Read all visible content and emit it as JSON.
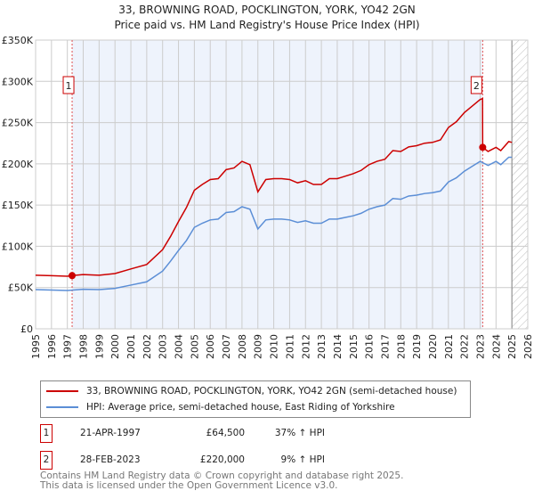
{
  "chart_data": {
    "type": "line",
    "title": "33, BROWNING ROAD, POCKLINGTON, YORK, YO42 2GN",
    "subtitle": "Price paid vs. HM Land Registry's House Price Index (HPI)",
    "xlim": [
      1995,
      2026
    ],
    "ylim": [
      0,
      350000
    ],
    "y_ticks": [
      0,
      50000,
      100000,
      150000,
      200000,
      250000,
      300000,
      350000
    ],
    "y_tick_labels": [
      "£0",
      "£50K",
      "£100K",
      "£150K",
      "£200K",
      "£250K",
      "£300K",
      "£350K"
    ],
    "x_ticks": [
      "1995",
      "1996",
      "1997",
      "1998",
      "1999",
      "2000",
      "2001",
      "2002",
      "2003",
      "2004",
      "2005",
      "2006",
      "2007",
      "2008",
      "2009",
      "2010",
      "2011",
      "2012",
      "2013",
      "2014",
      "2015",
      "2016",
      "2017",
      "2018",
      "2019",
      "2020",
      "2021",
      "2022",
      "2023",
      "2024",
      "2025",
      "2026"
    ],
    "grid": true,
    "shaded_range": [
      1997.3,
      2023.16
    ],
    "hatched_range": [
      2025,
      2026
    ],
    "series": [
      {
        "name": "33, BROWNING ROAD, POCKLINGTON, YORK, YO42 2GN (semi-detached house)",
        "color": "#cc0000",
        "x": [
          1995,
          1996,
          1997,
          1997.3,
          1998,
          1999,
          2000,
          2001,
          2002,
          2003,
          2003.5,
          2004,
          2004.5,
          2005,
          2005.5,
          2006,
          2006.5,
          2007,
          2007.5,
          2008,
          2008.5,
          2009,
          2009.5,
          2010,
          2010.5,
          2011,
          2011.5,
          2012,
          2012.5,
          2013,
          2013.5,
          2014,
          2015,
          2015.5,
          2016,
          2016.5,
          2017,
          2017.5,
          2018,
          2018.5,
          2019,
          2019.5,
          2020,
          2020.5,
          2021,
          2021.5,
          2022,
          2022.5,
          2023,
          2023.15,
          2023.16,
          2023.5,
          2024,
          2024.3,
          2024.8,
          2025
        ],
        "y": [
          65000,
          64400,
          63700,
          64500,
          65800,
          65000,
          67000,
          72600,
          78000,
          96000,
          112000,
          130000,
          147000,
          168000,
          175000,
          181000,
          182000,
          193000,
          195000,
          203000,
          199000,
          166000,
          181000,
          182000,
          182000,
          181000,
          177000,
          179500,
          175000,
          175000,
          182000,
          182000,
          188000,
          192000,
          199000,
          203000,
          205500,
          216000,
          215000,
          220500,
          222000,
          225000,
          226000,
          229000,
          244000,
          251000,
          262000,
          270000,
          278000,
          279000,
          220000,
          215000,
          220000,
          216000,
          227000,
          226000
        ]
      },
      {
        "name": "HPI: Average price, semi-detached house, East Riding of Yorkshire",
        "color": "#5b8ed6",
        "x": [
          1995,
          1996,
          1997,
          1998,
          1999,
          2000,
          2001,
          2002,
          2003,
          2003.5,
          2004,
          2004.5,
          2005,
          2005.5,
          2006,
          2006.5,
          2007,
          2007.5,
          2008,
          2008.5,
          2009,
          2009.5,
          2010,
          2010.5,
          2011,
          2011.5,
          2012,
          2012.5,
          2013,
          2013.5,
          2014,
          2015,
          2015.5,
          2016,
          2016.5,
          2017,
          2017.5,
          2018,
          2018.5,
          2019,
          2019.5,
          2020,
          2020.5,
          2021,
          2021.5,
          2022,
          2022.5,
          2023,
          2023.5,
          2024,
          2024.3,
          2024.8,
          2025
        ],
        "y": [
          47500,
          47000,
          46500,
          48000,
          47500,
          49000,
          53000,
          57000,
          70000,
          82000,
          95000,
          107000,
          123000,
          128000,
          132000,
          133000,
          141000,
          142000,
          148000,
          145000,
          121000,
          132000,
          133000,
          133000,
          132000,
          129000,
          131000,
          128000,
          128000,
          133000,
          133000,
          137000,
          140000,
          145000,
          148000,
          150000,
          158000,
          157000,
          161000,
          162000,
          164000,
          165000,
          167000,
          178000,
          183000,
          191000,
          197000,
          203000,
          198000,
          203000,
          199000,
          208000,
          208000
        ]
      }
    ],
    "annotations": [
      {
        "label": "1",
        "x": 1997.3,
        "y": 64500
      },
      {
        "label": "2",
        "x": 2023.16,
        "y": 220000
      }
    ]
  },
  "legend": {
    "items": [
      {
        "label": "33, BROWNING ROAD, POCKLINGTON, YORK, YO42 2GN (semi-detached house)",
        "color": "#cc0000"
      },
      {
        "label": "HPI: Average price, semi-detached house, East Riding of Yorkshire",
        "color": "#5b8ed6"
      }
    ]
  },
  "transactions": [
    {
      "num": "1",
      "date": "21-APR-1997",
      "price": "£64,500",
      "hpi": "37% ↑ HPI"
    },
    {
      "num": "2",
      "date": "28-FEB-2023",
      "price": "£220,000",
      "hpi": "9% ↑ HPI"
    }
  ],
  "footer": {
    "line1": "Contains HM Land Registry data © Crown copyright and database right 2025.",
    "line2": "This data is licensed under the Open Government Licence v3.0."
  }
}
